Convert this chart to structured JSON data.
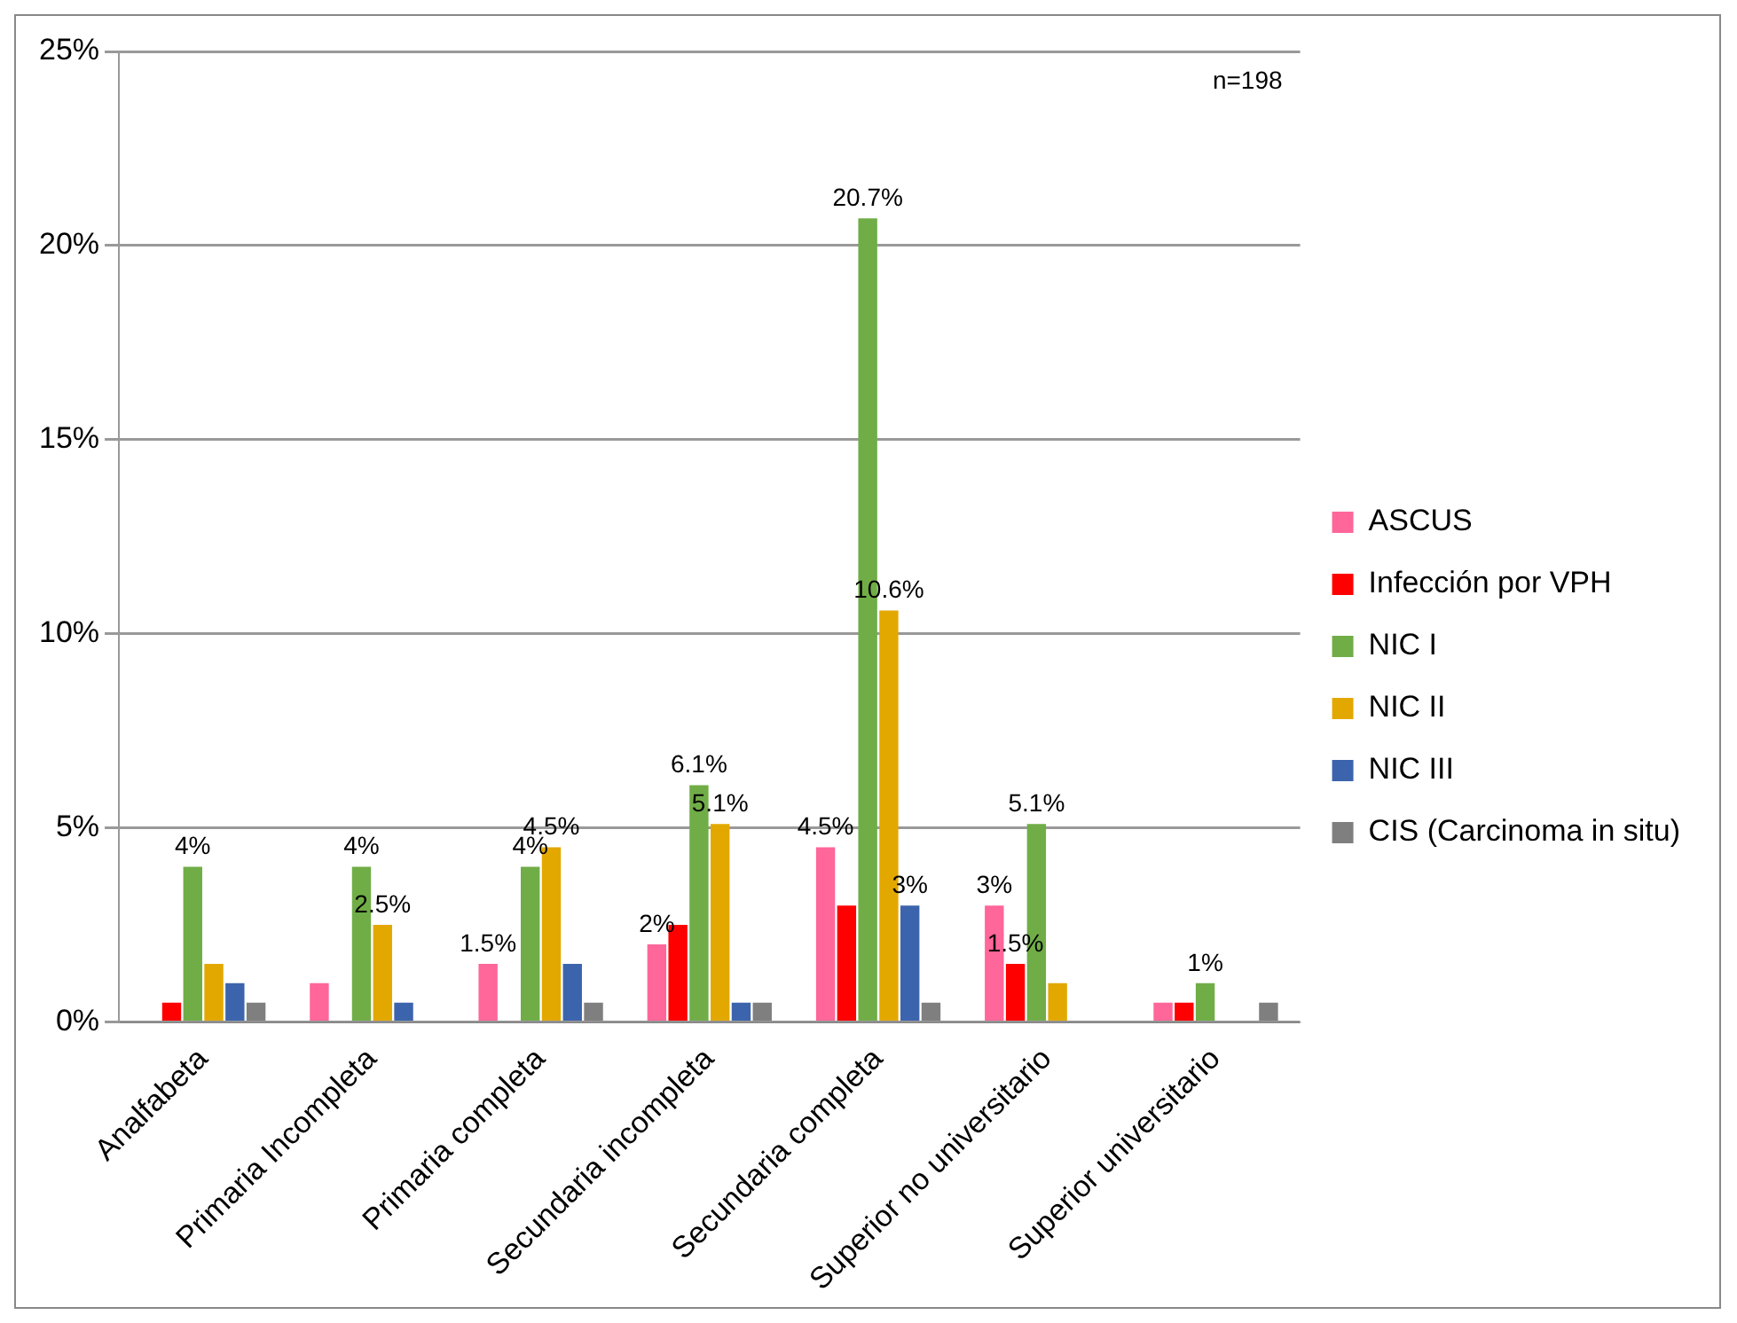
{
  "chart_data": {
    "type": "bar",
    "categories": [
      "Analfabeta",
      "Primaria Incompleta",
      "Primaria completa",
      "Secundaria incompleta",
      "Secundaria completa",
      "Superior no universitario",
      "Superior universitario"
    ],
    "series": [
      {
        "name": "ASCUS",
        "color": "#ff6699",
        "values": [
          0,
          1,
          1.5,
          2,
          4.5,
          3,
          0.5
        ],
        "value_labels": [
          null,
          null,
          "1.5%",
          "2%",
          "4.5%",
          "3%",
          null
        ]
      },
      {
        "name": "Infección por VPH",
        "color": "#ff0000",
        "values": [
          0.5,
          0,
          0,
          2.5,
          3,
          1.5,
          0.5
        ],
        "value_labels": [
          null,
          null,
          null,
          null,
          null,
          "1.5%",
          null
        ]
      },
      {
        "name": "NIC I",
        "color": "#70ad47",
        "values": [
          4,
          4,
          4,
          6.1,
          20.7,
          5.1,
          1
        ],
        "value_labels": [
          "4%",
          "4%",
          "4%",
          "6.1%",
          "20.7%",
          "5.1%",
          "1%"
        ]
      },
      {
        "name": "NIC II",
        "color": "#e3a800",
        "values": [
          1.5,
          2.5,
          4.5,
          5.1,
          10.6,
          1,
          0
        ],
        "value_labels": [
          null,
          "2.5%",
          "4.5%",
          "5.1%",
          "10.6%",
          null,
          null
        ]
      },
      {
        "name": "NIC III",
        "color": "#3b64ad",
        "values": [
          1,
          0.5,
          1.5,
          0.5,
          3,
          0,
          0
        ],
        "value_labels": [
          null,
          null,
          null,
          null,
          "3%",
          null,
          null
        ]
      },
      {
        "name": "CIS (Carcinoma in situ)",
        "color": "#7f7f7f",
        "values": [
          0.5,
          0,
          0.5,
          0.5,
          0.5,
          0,
          0.5
        ],
        "value_labels": [
          null,
          null,
          null,
          null,
          null,
          null,
          null
        ]
      }
    ],
    "ylim": [
      0,
      25
    ],
    "yticks": [
      {
        "value": 0,
        "label": "0%"
      },
      {
        "value": 5,
        "label": "5%"
      },
      {
        "value": 10,
        "label": "10%"
      },
      {
        "value": 15,
        "label": "15%"
      },
      {
        "value": 20,
        "label": "20%"
      },
      {
        "value": 25,
        "label": "25%"
      }
    ],
    "grid": "y",
    "legend": "right",
    "annotations": [
      "n=198"
    ]
  }
}
